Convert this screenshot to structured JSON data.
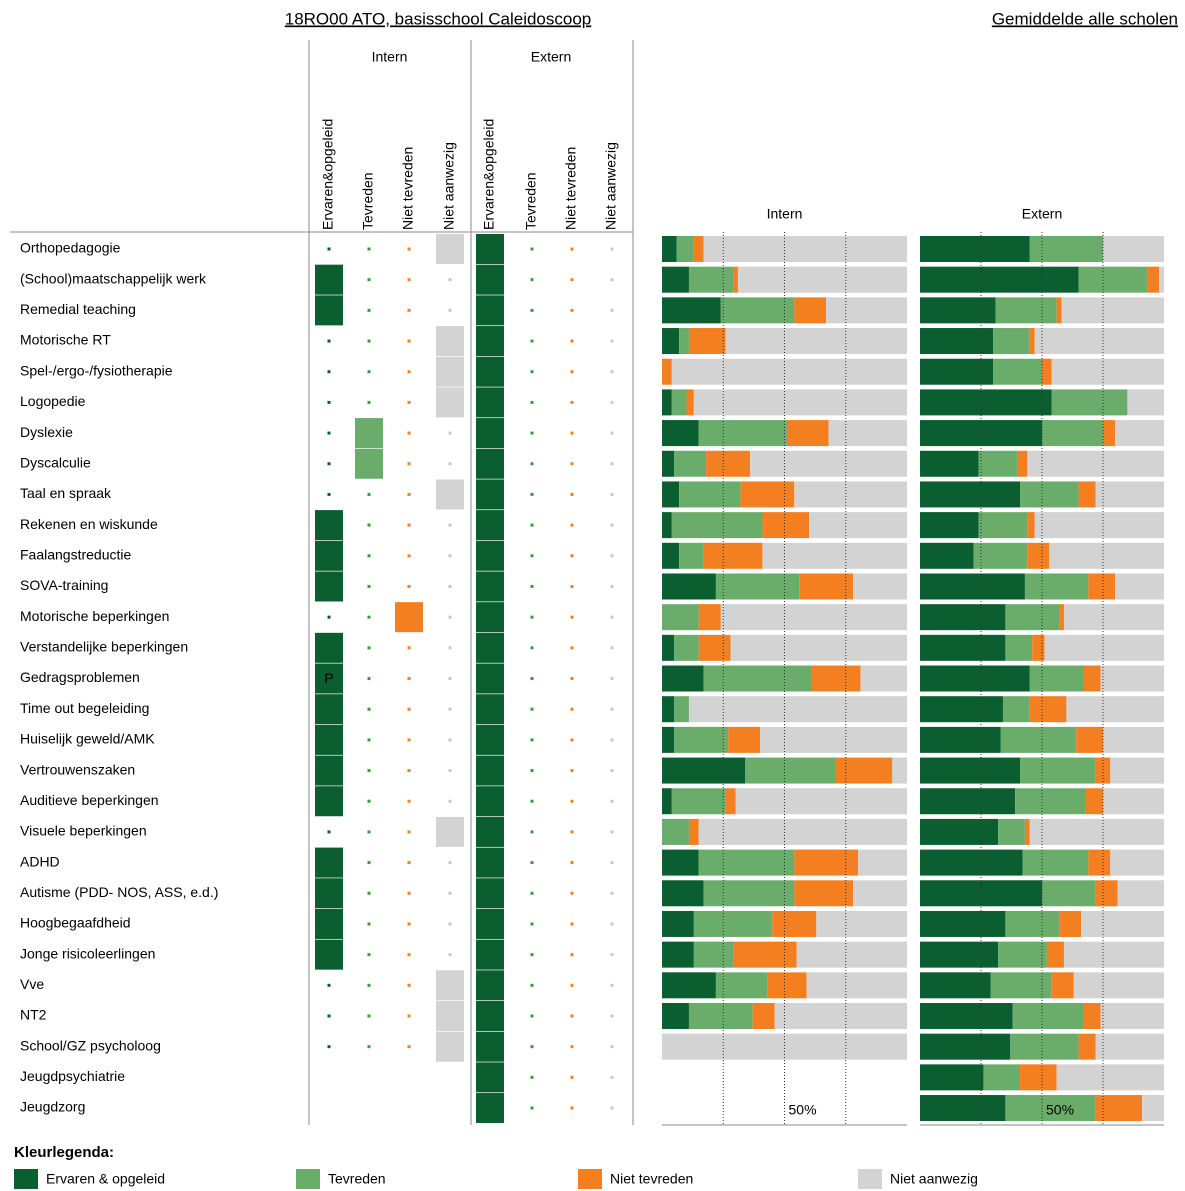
{
  "header": {
    "title": "18RO00 ATO, basisschool Caleidoscoop",
    "subtitle": "Gemiddelde alle scholen"
  },
  "matrix": {
    "groups": [
      "Intern",
      "Extern"
    ],
    "columns": [
      "Ervaren&opgeleid",
      "Tevreden",
      "Niet tevreden",
      "Niet aanwezig"
    ],
    "rows": [
      {
        "label": "Orthopedagogie",
        "intern": [
          0,
          0,
          0,
          1
        ],
        "extern": [
          1,
          0,
          0,
          0
        ]
      },
      {
        "label": "(School)maatschappelijk werk",
        "intern": [
          1,
          0,
          0,
          0
        ],
        "extern": [
          1,
          0,
          0,
          0
        ]
      },
      {
        "label": "Remedial teaching",
        "intern": [
          1,
          0,
          0,
          0
        ],
        "extern": [
          1,
          0,
          0,
          0
        ]
      },
      {
        "label": "Motorische RT",
        "intern": [
          0,
          0,
          0,
          1
        ],
        "extern": [
          1,
          0,
          0,
          0
        ]
      },
      {
        "label": "Spel-/ergo-/fysiotherapie",
        "intern": [
          0,
          0,
          0,
          1
        ],
        "extern": [
          1,
          0,
          0,
          0
        ]
      },
      {
        "label": "Logopedie",
        "intern": [
          0,
          0,
          0,
          1
        ],
        "extern": [
          1,
          0,
          0,
          0
        ]
      },
      {
        "label": "Dyslexie",
        "intern": [
          0,
          1,
          0,
          0
        ],
        "extern": [
          1,
          0,
          0,
          0
        ]
      },
      {
        "label": "Dyscalculie",
        "intern": [
          0,
          1,
          0,
          0
        ],
        "extern": [
          1,
          0,
          0,
          0
        ]
      },
      {
        "label": "Taal en spraak",
        "intern": [
          0,
          0,
          0,
          1
        ],
        "extern": [
          1,
          0,
          0,
          0
        ]
      },
      {
        "label": "Rekenen en wiskunde",
        "intern": [
          1,
          0,
          0,
          0
        ],
        "extern": [
          1,
          0,
          0,
          0
        ]
      },
      {
        "label": "Faalangstreductie",
        "intern": [
          1,
          0,
          0,
          0
        ],
        "extern": [
          1,
          0,
          0,
          0
        ]
      },
      {
        "label": "SOVA-training",
        "intern": [
          1,
          0,
          0,
          0
        ],
        "extern": [
          1,
          0,
          0,
          0
        ]
      },
      {
        "label": "Motorische beperkingen",
        "intern": [
          0,
          0,
          1,
          0
        ],
        "extern": [
          1,
          0,
          0,
          0
        ]
      },
      {
        "label": "Verstandelijke beperkingen",
        "intern": [
          1,
          0,
          0,
          0
        ],
        "extern": [
          1,
          0,
          0,
          0
        ]
      },
      {
        "label": "Gedragsproblemen",
        "intern": [
          1,
          0,
          0,
          0
        ],
        "intern_text": "P",
        "extern": [
          1,
          0,
          0,
          0
        ]
      },
      {
        "label": "Time out begeleiding",
        "intern": [
          1,
          0,
          0,
          0
        ],
        "extern": [
          1,
          0,
          0,
          0
        ]
      },
      {
        "label": "Huiselijk geweld/AMK",
        "intern": [
          1,
          0,
          0,
          0
        ],
        "extern": [
          1,
          0,
          0,
          0
        ]
      },
      {
        "label": "Vertrouwenszaken",
        "intern": [
          1,
          0,
          0,
          0
        ],
        "extern": [
          1,
          0,
          0,
          0
        ]
      },
      {
        "label": "Auditieve beperkingen",
        "intern": [
          1,
          0,
          0,
          0
        ],
        "extern": [
          1,
          0,
          0,
          0
        ]
      },
      {
        "label": "Visuele beperkingen",
        "intern": [
          0,
          0,
          0,
          1
        ],
        "extern": [
          1,
          0,
          0,
          0
        ]
      },
      {
        "label": "ADHD",
        "intern": [
          1,
          0,
          0,
          0
        ],
        "extern": [
          1,
          0,
          0,
          0
        ]
      },
      {
        "label": "Autisme (PDD- NOS, ASS, e.d.)",
        "intern": [
          1,
          0,
          0,
          0
        ],
        "extern": [
          1,
          0,
          0,
          0
        ]
      },
      {
        "label": "Hoogbegaafdheid",
        "intern": [
          1,
          0,
          0,
          0
        ],
        "extern": [
          1,
          0,
          0,
          0
        ]
      },
      {
        "label": "Jonge risicoleerlingen",
        "intern": [
          1,
          0,
          0,
          0
        ],
        "extern": [
          1,
          0,
          0,
          0
        ]
      },
      {
        "label": "Vve",
        "intern": [
          0,
          0,
          0,
          1
        ],
        "extern": [
          1,
          0,
          0,
          0
        ]
      },
      {
        "label": "NT2",
        "intern": [
          0,
          0,
          0,
          1
        ],
        "extern": [
          1,
          0,
          0,
          0
        ]
      },
      {
        "label": "School/GZ psycholoog",
        "intern": [
          0,
          0,
          0,
          1
        ],
        "extern": [
          1,
          0,
          0,
          0
        ]
      },
      {
        "label": "Jeugdpsychiatrie",
        "intern": null,
        "extern": [
          1,
          0,
          0,
          0
        ]
      },
      {
        "label": "Jeugdzorg",
        "intern": null,
        "extern": [
          1,
          0,
          0,
          0
        ]
      }
    ]
  },
  "chart_data": [
    {
      "type": "stacked-bar-horizontal",
      "title": "Intern",
      "xlim": [
        0,
        100
      ],
      "gridlines": [
        25,
        50,
        75
      ],
      "xticks": [
        {
          "value": 50,
          "label": "50%"
        }
      ],
      "series": [
        {
          "name": "Ervaren & opgeleid",
          "color": "#0b5e2f",
          "values": [
            6,
            11,
            24,
            7,
            0,
            4,
            15,
            5,
            7,
            4,
            7,
            22,
            0,
            5,
            17,
            5,
            5,
            34,
            4,
            0,
            15,
            17,
            13,
            13,
            22,
            11,
            0,
            null,
            null
          ]
        },
        {
          "name": "Tevreden",
          "color": "#6aac6a",
          "values": [
            7,
            18,
            30,
            4,
            0,
            6,
            36,
            13,
            25,
            37,
            10,
            34,
            15,
            10,
            44,
            6,
            22,
            37,
            22,
            11,
            39,
            37,
            32,
            16,
            21,
            26,
            0,
            null,
            null
          ]
        },
        {
          "name": "Niet tevreden",
          "color": "#f47f20",
          "values": [
            4,
            2,
            13,
            15,
            4,
            3,
            17,
            18,
            22,
            19,
            24,
            22,
            9,
            13,
            20,
            0,
            13,
            23,
            4,
            4,
            26,
            24,
            18,
            26,
            16,
            9,
            0,
            null,
            null
          ]
        },
        {
          "name": "Niet aanwezig",
          "color": "#d3d3d3",
          "values": [
            83,
            69,
            33,
            74,
            96,
            87,
            32,
            64,
            46,
            40,
            59,
            22,
            76,
            72,
            19,
            89,
            60,
            6,
            70,
            85,
            20,
            22,
            37,
            45,
            41,
            54,
            100,
            null,
            null
          ]
        }
      ]
    },
    {
      "type": "stacked-bar-horizontal",
      "title": "Extern",
      "xlim": [
        0,
        100
      ],
      "gridlines": [
        25,
        50,
        75
      ],
      "xticks": [
        {
          "value": 50,
          "label": "50%"
        }
      ],
      "series": [
        {
          "name": "Ervaren & opgeleid",
          "color": "#0b5e2f",
          "values": [
            45,
            65,
            31,
            30,
            30,
            54,
            50,
            24,
            41,
            24,
            22,
            43,
            35,
            35,
            45,
            34,
            33,
            41,
            39,
            32,
            42,
            50,
            35,
            32,
            29,
            38,
            37,
            26,
            35
          ]
        },
        {
          "name": "Tevreden",
          "color": "#6aac6a",
          "values": [
            30,
            28,
            25,
            15,
            20,
            31,
            25,
            16,
            24,
            20,
            22,
            26,
            22,
            11,
            22,
            11,
            31,
            31,
            29,
            11,
            27,
            22,
            22,
            20,
            25,
            29,
            28,
            15,
            37
          ]
        },
        {
          "name": "Niet tevreden",
          "color": "#f47f20",
          "values": [
            0,
            5,
            2,
            2,
            4,
            0,
            5,
            4,
            7,
            3,
            9,
            11,
            2,
            5,
            7,
            15,
            11,
            6,
            7,
            2,
            9,
            9,
            9,
            7,
            9,
            7,
            7,
            15,
            19
          ]
        },
        {
          "name": "Niet aanwezig",
          "color": "#d3d3d3",
          "values": [
            25,
            2,
            42,
            53,
            46,
            15,
            20,
            56,
            28,
            53,
            47,
            20,
            41,
            49,
            26,
            40,
            25,
            22,
            25,
            55,
            22,
            19,
            34,
            41,
            37,
            26,
            28,
            44,
            9
          ]
        }
      ]
    }
  ],
  "legend": {
    "title": "Kleurlegenda:"
  }
}
